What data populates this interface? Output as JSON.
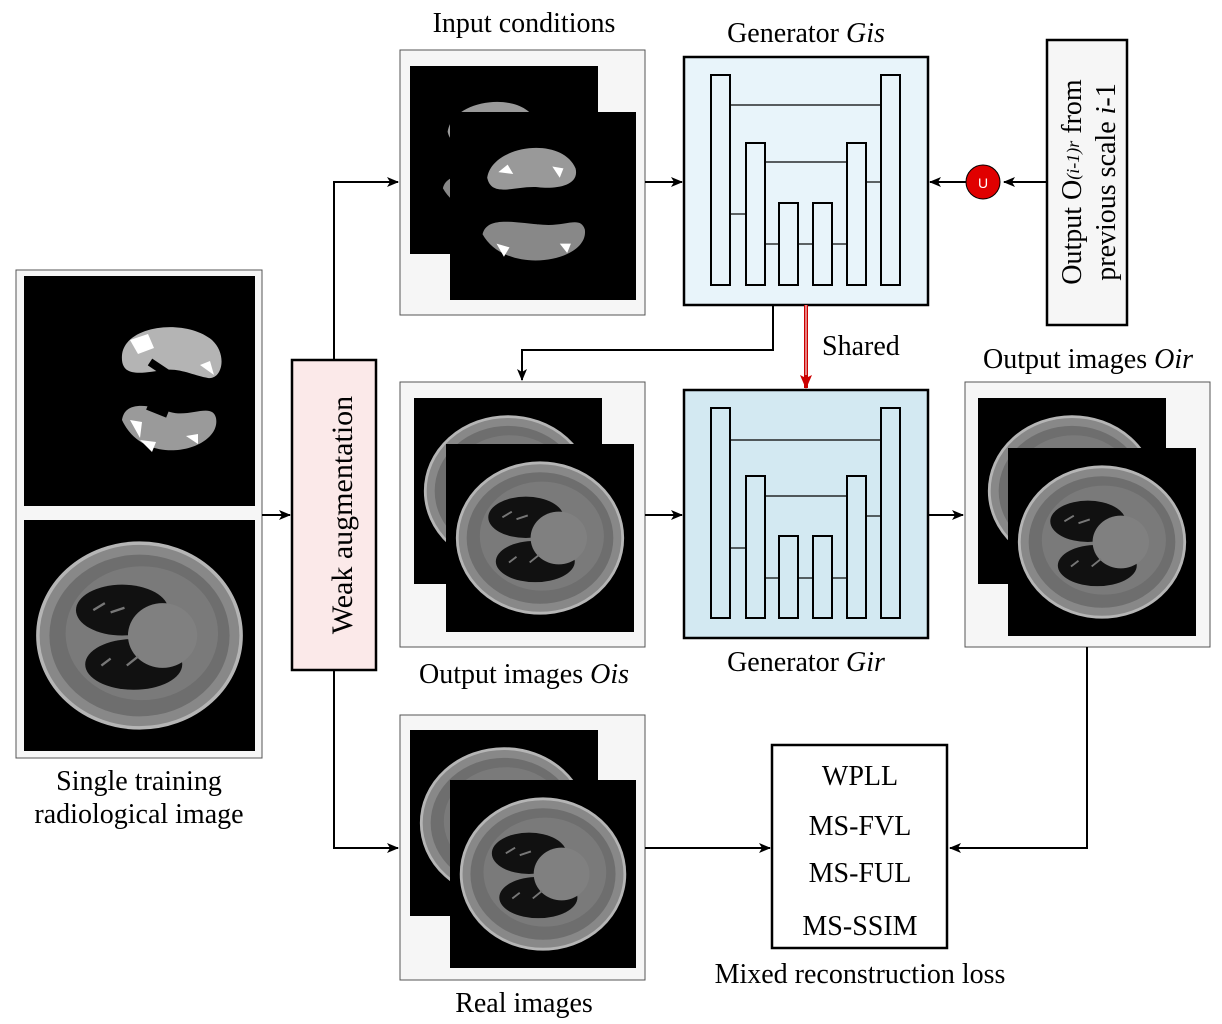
{
  "labels": {
    "input_conditions": "Input conditions",
    "generator_is_prefix": "Generator ",
    "generator_is_sub": "Gis",
    "generator_ir_prefix": "Generator ",
    "generator_ir_sub": "Gir",
    "output_prev_line1_prefix": "Output O",
    "output_prev_line1_sub": "(i-1)r",
    "output_prev_line1_suffix": " from",
    "output_prev_line2_prefix": "previous scale ",
    "output_prev_line2_italic": "i",
    "output_prev_line2_suffix": "-1",
    "shared": "Shared",
    "output_ir_prefix": "Output images ",
    "output_ir_sub": "Oir",
    "output_is_prefix": "Output images ",
    "output_is_sub": "Ois",
    "weak_augmentation": "Weak augmentation",
    "single_training_line1": "Single training",
    "single_training_line2": "radiological image",
    "real_images": "Real images",
    "upsample_symbol": "U",
    "mixed_loss": "Mixed reconstruction loss",
    "loss_terms": [
      "WPLL",
      "MS-FVL",
      "MS-FUL",
      "MS-SSIM"
    ]
  },
  "colors": {
    "generator_top_fill": "#e8f4fa",
    "generator_bottom_fill": "#d3e9f2",
    "augmentation_fill": "#fbe9e9",
    "shared_arrow": "#cc0000",
    "upsample_node": "#e00000",
    "panel_bg": "#f6f6f6"
  }
}
